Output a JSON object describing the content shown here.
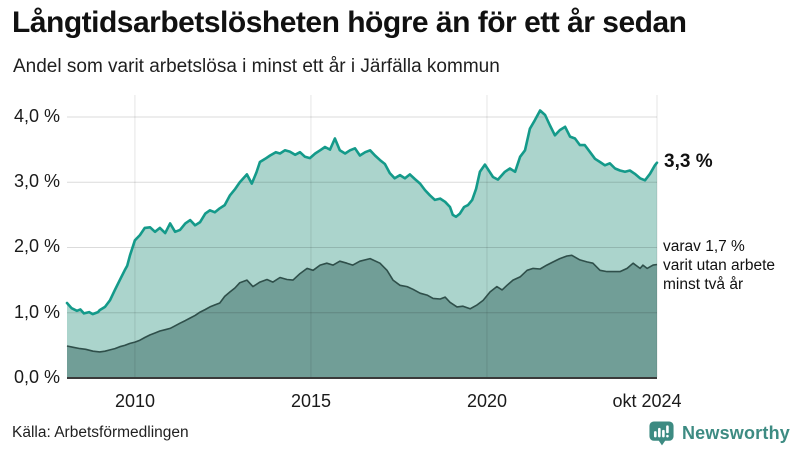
{
  "header": {
    "title": "Långtidsarbetslösheten högre än för ett år sedan",
    "subtitle": "Andel som varit arbetslösa i minst ett år i Järfälla kommun"
  },
  "annotations": {
    "latest_total": "3,3 %",
    "latest_two_years_line1": "varav 1,7 %",
    "latest_two_years_line2": "varit utan arbete",
    "latest_two_years_line3": "minst två år"
  },
  "footer": {
    "source": "Källa: Arbetsförmedlingen",
    "brand": "Newsworthy"
  },
  "colors": {
    "teal_line": "#149a8a",
    "light_fill": "#abd4cc",
    "dark_fill": "#719e97",
    "dark_line": "#2f4f4a",
    "axis": "#3a3a3a",
    "brand_teal": "#3d8b82"
  },
  "chart_data": {
    "type": "area",
    "title": "Långtidsarbetslösheten högre än för ett år sedan",
    "subtitle": "Andel som varit arbetslösa i minst ett år i Järfälla kommun",
    "grid": true,
    "legend_position": "right-edge-annotations",
    "x_range": [
      2008.07,
      2024.83
    ],
    "ylim": [
      0,
      4.35
    ],
    "y_tick_values": [
      4,
      3,
      2,
      1,
      0
    ],
    "y_labels": [
      "4,0 %",
      "3,0 %",
      "2,0 %",
      "1,0 %",
      "0,0 %"
    ],
    "x_tick_years": [
      2010,
      2015,
      2020,
      2024.83
    ],
    "x_labels": [
      "2010",
      "2015",
      "2020",
      "okt 2024"
    ],
    "series": [
      {
        "name": "arbetslösa minst ett år",
        "end_value_label": "3,3 %",
        "points": [
          [
            2008.07,
            1.15
          ],
          [
            2008.2,
            1.07
          ],
          [
            2008.35,
            1.03
          ],
          [
            2008.45,
            1.05
          ],
          [
            2008.55,
            0.99
          ],
          [
            2008.7,
            1.01
          ],
          [
            2008.8,
            0.98
          ],
          [
            2008.95,
            1.01
          ],
          [
            2009.0,
            1.04
          ],
          [
            2009.15,
            1.09
          ],
          [
            2009.29,
            1.19
          ],
          [
            2009.43,
            1.35
          ],
          [
            2009.57,
            1.5
          ],
          [
            2009.71,
            1.65
          ],
          [
            2009.78,
            1.72
          ],
          [
            2009.86,
            1.88
          ],
          [
            2010.0,
            2.11
          ],
          [
            2010.14,
            2.19
          ],
          [
            2010.28,
            2.3
          ],
          [
            2010.43,
            2.31
          ],
          [
            2010.57,
            2.24
          ],
          [
            2010.71,
            2.3
          ],
          [
            2010.86,
            2.22
          ],
          [
            2011.0,
            2.37
          ],
          [
            2011.14,
            2.24
          ],
          [
            2011.28,
            2.27
          ],
          [
            2011.43,
            2.37
          ],
          [
            2011.57,
            2.42
          ],
          [
            2011.71,
            2.34
          ],
          [
            2011.85,
            2.39
          ],
          [
            2012.0,
            2.52
          ],
          [
            2012.13,
            2.57
          ],
          [
            2012.27,
            2.54
          ],
          [
            2012.41,
            2.6
          ],
          [
            2012.55,
            2.65
          ],
          [
            2012.7,
            2.8
          ],
          [
            2012.85,
            2.9
          ],
          [
            2012.98,
            3.0
          ],
          [
            2013.18,
            3.12
          ],
          [
            2013.32,
            2.98
          ],
          [
            2013.45,
            3.15
          ],
          [
            2013.55,
            3.31
          ],
          [
            2013.7,
            3.36
          ],
          [
            2013.84,
            3.41
          ],
          [
            2014.0,
            3.46
          ],
          [
            2014.12,
            3.44
          ],
          [
            2014.26,
            3.49
          ],
          [
            2014.4,
            3.47
          ],
          [
            2014.55,
            3.42
          ],
          [
            2014.69,
            3.46
          ],
          [
            2014.83,
            3.39
          ],
          [
            2014.97,
            3.37
          ],
          [
            2015.12,
            3.44
          ],
          [
            2015.26,
            3.49
          ],
          [
            2015.4,
            3.54
          ],
          [
            2015.54,
            3.5
          ],
          [
            2015.68,
            3.67
          ],
          [
            2015.82,
            3.49
          ],
          [
            2015.97,
            3.44
          ],
          [
            2016.11,
            3.49
          ],
          [
            2016.25,
            3.52
          ],
          [
            2016.39,
            3.41
          ],
          [
            2016.54,
            3.46
          ],
          [
            2016.68,
            3.49
          ],
          [
            2016.82,
            3.41
          ],
          [
            2016.96,
            3.34
          ],
          [
            2017.1,
            3.28
          ],
          [
            2017.24,
            3.14
          ],
          [
            2017.38,
            3.06
          ],
          [
            2017.53,
            3.11
          ],
          [
            2017.67,
            3.06
          ],
          [
            2017.81,
            3.12
          ],
          [
            2017.95,
            3.05
          ],
          [
            2018.1,
            2.98
          ],
          [
            2018.24,
            2.88
          ],
          [
            2018.38,
            2.8
          ],
          [
            2018.52,
            2.73
          ],
          [
            2018.67,
            2.75
          ],
          [
            2018.81,
            2.7
          ],
          [
            2018.95,
            2.62
          ],
          [
            2019.03,
            2.5
          ],
          [
            2019.12,
            2.47
          ],
          [
            2019.23,
            2.52
          ],
          [
            2019.35,
            2.62
          ],
          [
            2019.46,
            2.65
          ],
          [
            2019.58,
            2.73
          ],
          [
            2019.69,
            2.9
          ],
          [
            2019.8,
            3.16
          ],
          [
            2019.94,
            3.27
          ],
          [
            2020.17,
            3.08
          ],
          [
            2020.31,
            3.04
          ],
          [
            2020.51,
            3.16
          ],
          [
            2020.65,
            3.21
          ],
          [
            2020.8,
            3.16
          ],
          [
            2020.94,
            3.39
          ],
          [
            2021.08,
            3.49
          ],
          [
            2021.22,
            3.82
          ],
          [
            2021.36,
            3.95
          ],
          [
            2021.51,
            4.1
          ],
          [
            2021.65,
            4.03
          ],
          [
            2021.79,
            3.87
          ],
          [
            2021.93,
            3.72
          ],
          [
            2022.07,
            3.8
          ],
          [
            2022.22,
            3.85
          ],
          [
            2022.36,
            3.7
          ],
          [
            2022.5,
            3.67
          ],
          [
            2022.64,
            3.57
          ],
          [
            2022.78,
            3.57
          ],
          [
            2022.93,
            3.46
          ],
          [
            2023.07,
            3.36
          ],
          [
            2023.21,
            3.31
          ],
          [
            2023.35,
            3.26
          ],
          [
            2023.49,
            3.29
          ],
          [
            2023.64,
            3.21
          ],
          [
            2023.78,
            3.18
          ],
          [
            2023.92,
            3.16
          ],
          [
            2024.06,
            3.18
          ],
          [
            2024.2,
            3.13
          ],
          [
            2024.35,
            3.06
          ],
          [
            2024.49,
            3.03
          ],
          [
            2024.63,
            3.13
          ],
          [
            2024.77,
            3.26
          ],
          [
            2024.83,
            3.3
          ]
        ]
      },
      {
        "name": "varav utan arbete minst två år",
        "end_value_label": "1,7 %",
        "points": [
          [
            2008.07,
            0.49
          ],
          [
            2008.25,
            0.47
          ],
          [
            2008.44,
            0.45
          ],
          [
            2008.6,
            0.44
          ],
          [
            2008.81,
            0.41
          ],
          [
            2009.0,
            0.4
          ],
          [
            2009.15,
            0.41
          ],
          [
            2009.29,
            0.43
          ],
          [
            2009.43,
            0.45
          ],
          [
            2009.57,
            0.48
          ],
          [
            2009.71,
            0.5
          ],
          [
            2009.86,
            0.53
          ],
          [
            2010.0,
            0.55
          ],
          [
            2010.14,
            0.58
          ],
          [
            2010.28,
            0.62
          ],
          [
            2010.43,
            0.66
          ],
          [
            2010.57,
            0.69
          ],
          [
            2010.71,
            0.72
          ],
          [
            2010.86,
            0.74
          ],
          [
            2011.0,
            0.76
          ],
          [
            2011.14,
            0.8
          ],
          [
            2011.28,
            0.84
          ],
          [
            2011.43,
            0.88
          ],
          [
            2011.57,
            0.92
          ],
          [
            2011.71,
            0.96
          ],
          [
            2011.85,
            1.01
          ],
          [
            2012.0,
            1.05
          ],
          [
            2012.13,
            1.09
          ],
          [
            2012.27,
            1.12
          ],
          [
            2012.41,
            1.15
          ],
          [
            2012.55,
            1.25
          ],
          [
            2012.7,
            1.32
          ],
          [
            2012.84,
            1.38
          ],
          [
            2012.98,
            1.46
          ],
          [
            2013.18,
            1.5
          ],
          [
            2013.35,
            1.4
          ],
          [
            2013.55,
            1.47
          ],
          [
            2013.75,
            1.51
          ],
          [
            2013.92,
            1.47
          ],
          [
            2014.12,
            1.54
          ],
          [
            2014.32,
            1.51
          ],
          [
            2014.49,
            1.5
          ],
          [
            2014.69,
            1.6
          ],
          [
            2014.89,
            1.68
          ],
          [
            2015.06,
            1.65
          ],
          [
            2015.26,
            1.73
          ],
          [
            2015.45,
            1.76
          ],
          [
            2015.63,
            1.73
          ],
          [
            2015.82,
            1.79
          ],
          [
            2016.02,
            1.76
          ],
          [
            2016.19,
            1.73
          ],
          [
            2016.39,
            1.79
          ],
          [
            2016.68,
            1.83
          ],
          [
            2016.96,
            1.76
          ],
          [
            2017.16,
            1.65
          ],
          [
            2017.33,
            1.5
          ],
          [
            2017.53,
            1.42
          ],
          [
            2017.73,
            1.4
          ],
          [
            2017.9,
            1.36
          ],
          [
            2018.1,
            1.3
          ],
          [
            2018.3,
            1.27
          ],
          [
            2018.47,
            1.22
          ],
          [
            2018.67,
            1.21
          ],
          [
            2018.81,
            1.24
          ],
          [
            2018.95,
            1.16
          ],
          [
            2019.15,
            1.09
          ],
          [
            2019.32,
            1.1
          ],
          [
            2019.52,
            1.06
          ],
          [
            2019.72,
            1.12
          ],
          [
            2019.89,
            1.19
          ],
          [
            2020.09,
            1.32
          ],
          [
            2020.28,
            1.4
          ],
          [
            2020.43,
            1.35
          ],
          [
            2020.57,
            1.42
          ],
          [
            2020.74,
            1.5
          ],
          [
            2020.94,
            1.55
          ],
          [
            2021.14,
            1.65
          ],
          [
            2021.31,
            1.68
          ],
          [
            2021.51,
            1.67
          ],
          [
            2021.7,
            1.73
          ],
          [
            2021.88,
            1.78
          ],
          [
            2022.07,
            1.83
          ],
          [
            2022.27,
            1.87
          ],
          [
            2022.41,
            1.88
          ],
          [
            2022.64,
            1.81
          ],
          [
            2022.84,
            1.78
          ],
          [
            2023.01,
            1.76
          ],
          [
            2023.21,
            1.65
          ],
          [
            2023.41,
            1.63
          ],
          [
            2023.58,
            1.63
          ],
          [
            2023.78,
            1.63
          ],
          [
            2023.98,
            1.68
          ],
          [
            2024.15,
            1.76
          ],
          [
            2024.35,
            1.68
          ],
          [
            2024.43,
            1.73
          ],
          [
            2024.55,
            1.68
          ],
          [
            2024.72,
            1.73
          ],
          [
            2024.83,
            1.74
          ]
        ]
      }
    ]
  }
}
